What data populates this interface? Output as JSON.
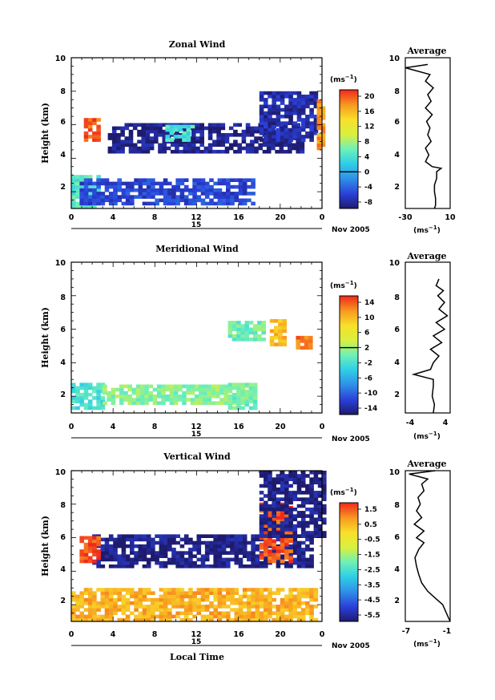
{
  "chart_data": [
    {
      "type": "heatmap",
      "title": "Zonal Wind",
      "ylabel": "Height (km)",
      "xlabel": "",
      "xlim": [
        0,
        24
      ],
      "ylim": [
        1,
        10
      ],
      "xticks": [
        "0",
        "4",
        "8",
        "12",
        "16",
        "20",
        "0"
      ],
      "yticks": [
        "2",
        "4",
        "6",
        "8",
        "10"
      ],
      "date_label": "15",
      "month_label": "Nov 2005",
      "colorbar": {
        "units": "(ms",
        "units_exp": "−1",
        "units_close": ")",
        "ticks": [
          "20",
          "16",
          "12",
          "8",
          "4",
          "0",
          "-4",
          "-8"
        ],
        "range": [
          -10,
          22
        ],
        "zero_line": 0
      },
      "regions": [
        {
          "x": [
            1.2,
            2.8
          ],
          "y": [
            5.0,
            6.3
          ],
          "value": 20
        },
        {
          "x": [
            0.0,
            2.8
          ],
          "y": [
            1.0,
            3.0
          ],
          "value": 5
        },
        {
          "x": [
            0.8,
            17.5
          ],
          "y": [
            1.2,
            2.8
          ],
          "value": -6
        },
        {
          "x": [
            3.5,
            22.0
          ],
          "y": [
            4.3,
            6.0
          ],
          "value": -9
        },
        {
          "x": [
            9.0,
            11.5
          ],
          "y": [
            5.0,
            6.0
          ],
          "value": 4
        },
        {
          "x": [
            18.0,
            23.5
          ],
          "y": [
            5.0,
            8.0
          ],
          "value": -8
        },
        {
          "x": [
            23.5,
            24.0
          ],
          "y": [
            4.5,
            7.5
          ],
          "value": 18
        }
      ],
      "average_profile": {
        "title": "Average",
        "xlabel": "(ms",
        "xlabel_exp": "−1",
        "xlabel_close": ")",
        "xticks": [
          "-30",
          "10"
        ],
        "xlim": [
          -30,
          10
        ],
        "yticks": [
          "2",
          "4",
          "6",
          "8",
          "10"
        ],
        "points": [
          [
            -10,
            9.6
          ],
          [
            -30,
            9.4
          ],
          [
            -8,
            9.0
          ],
          [
            -12,
            8.6
          ],
          [
            -5,
            8.2
          ],
          [
            -10,
            7.8
          ],
          [
            -7,
            7.4
          ],
          [
            -12,
            7.0
          ],
          [
            -6,
            6.6
          ],
          [
            -11,
            6.2
          ],
          [
            -8,
            5.8
          ],
          [
            -10,
            5.4
          ],
          [
            -7,
            5.0
          ],
          [
            -12,
            4.6
          ],
          [
            -9,
            4.2
          ],
          [
            -12,
            3.8
          ],
          [
            -6,
            3.5
          ],
          [
            2,
            3.4
          ],
          [
            -2,
            3.2
          ],
          [
            -2,
            2.8
          ],
          [
            -4,
            2.4
          ],
          [
            -4,
            2.0
          ],
          [
            -3,
            1.6
          ],
          [
            -3,
            1.2
          ],
          [
            -4,
            1.0
          ]
        ]
      }
    },
    {
      "type": "heatmap",
      "title": "Meridional Wind",
      "ylabel": "Height (km)",
      "xlabel": "",
      "xlim": [
        0,
        24
      ],
      "ylim": [
        1,
        10
      ],
      "xticks": [
        "0",
        "4",
        "8",
        "12",
        "16",
        "20",
        "0"
      ],
      "yticks": [
        "2",
        "4",
        "6",
        "8",
        "10"
      ],
      "date_label": "15",
      "month_label": "Nov 2005",
      "colorbar": {
        "units": "(ms",
        "units_exp": "−1",
        "units_close": ")",
        "ticks": [
          "14",
          "10",
          "6",
          "2",
          "-2",
          "-6",
          "-10",
          "-14"
        ],
        "range": [
          -16,
          16
        ],
        "zero_line": 2
      },
      "regions": [
        {
          "x": [
            0.0,
            3.0
          ],
          "y": [
            1.2,
            2.8
          ],
          "value": -2
        },
        {
          "x": [
            3.0,
            17.5
          ],
          "y": [
            1.5,
            2.7
          ],
          "value": 1
        },
        {
          "x": [
            15.0,
            17.5
          ],
          "y": [
            1.2,
            2.8
          ],
          "value": 0
        },
        {
          "x": [
            15.0,
            18.5
          ],
          "y": [
            5.3,
            6.5
          ],
          "value": 0
        },
        {
          "x": [
            19.0,
            20.5
          ],
          "y": [
            5.0,
            6.5
          ],
          "value": 10
        },
        {
          "x": [
            21.5,
            23.0
          ],
          "y": [
            4.8,
            5.6
          ],
          "value": 13
        }
      ],
      "average_profile": {
        "title": "Average",
        "xlabel": "(ms",
        "xlabel_exp": "−1",
        "xlabel_close": ")",
        "xticks": [
          "-4",
          "4"
        ],
        "xlim": [
          -4,
          4
        ],
        "yticks": [
          "2",
          "4",
          "6",
          "8",
          "10"
        ],
        "points": [
          [
            1.0,
            1.0
          ],
          [
            1.2,
            1.5
          ],
          [
            0.8,
            2.0
          ],
          [
            1.0,
            2.6
          ],
          [
            1.0,
            3.0
          ],
          [
            -2.5,
            3.3
          ],
          [
            0.5,
            3.6
          ],
          [
            1.0,
            4.0
          ],
          [
            2.0,
            4.4
          ],
          [
            0.5,
            4.8
          ],
          [
            2.5,
            5.2
          ],
          [
            1.0,
            5.6
          ],
          [
            3.0,
            6.0
          ],
          [
            1.5,
            6.4
          ],
          [
            3.5,
            6.8
          ],
          [
            2.0,
            7.2
          ],
          [
            3.0,
            7.6
          ],
          [
            1.8,
            8.0
          ],
          [
            2.8,
            8.3
          ],
          [
            1.5,
            8.6
          ],
          [
            2.0,
            9.0
          ]
        ]
      }
    },
    {
      "type": "heatmap",
      "title": "Vertical Wind",
      "ylabel": "Height (km)",
      "xlabel": "Local Time",
      "xlim": [
        0,
        24
      ],
      "ylim": [
        1,
        10
      ],
      "xticks": [
        "0",
        "4",
        "8",
        "12",
        "16",
        "20",
        "0"
      ],
      "yticks": [
        "2",
        "4",
        "6",
        "8",
        "10"
      ],
      "date_label": "15",
      "month_label": "Nov 2005",
      "colorbar": {
        "units": "(ms",
        "units_exp": "−1",
        "units_close": ")",
        "ticks": [
          "1.5",
          "0.5",
          "-0.5",
          "-1.5",
          "-2.5",
          "-3.5",
          "-4.5",
          "-5.5"
        ],
        "range": [
          -6.2,
          2.2
        ],
        "zero_line": null
      },
      "regions": [
        {
          "x": [
            0.0,
            23.5
          ],
          "y": [
            1.0,
            3.0
          ],
          "value": 0.8
        },
        {
          "x": [
            2.0,
            23.0
          ],
          "y": [
            4.2,
            6.2
          ],
          "value": -6.0
        },
        {
          "x": [
            0.8,
            2.8
          ],
          "y": [
            4.5,
            6.0
          ],
          "value": 1.8
        },
        {
          "x": [
            18.0,
            21.0
          ],
          "y": [
            4.5,
            8.0
          ],
          "value": 1.8
        },
        {
          "x": [
            18.0,
            24.0
          ],
          "y": [
            6.0,
            9.8
          ],
          "value": -6.0
        }
      ],
      "average_profile": {
        "title": "Average",
        "xlabel": "(ms",
        "xlabel_exp": "−1",
        "xlabel_close": ")",
        "xticks": [
          "-7",
          "-1"
        ],
        "xlim": [
          -7,
          -1
        ],
        "yticks": [
          "2",
          "4",
          "6",
          "8",
          "10"
        ],
        "points": [
          [
            -1.0,
            1.0
          ],
          [
            -1.5,
            1.5
          ],
          [
            -2.0,
            2.0
          ],
          [
            -3.0,
            2.4
          ],
          [
            -4.0,
            2.8
          ],
          [
            -4.8,
            3.3
          ],
          [
            -5.2,
            3.8
          ],
          [
            -5.5,
            4.3
          ],
          [
            -5.7,
            4.8
          ],
          [
            -5.2,
            5.3
          ],
          [
            -4.5,
            5.7
          ],
          [
            -5.5,
            6.0
          ],
          [
            -4.5,
            6.4
          ],
          [
            -5.8,
            6.8
          ],
          [
            -4.8,
            7.2
          ],
          [
            -5.5,
            7.6
          ],
          [
            -5.0,
            8.0
          ],
          [
            -5.3,
            8.4
          ],
          [
            -4.5,
            8.8
          ],
          [
            -4.8,
            9.2
          ],
          [
            -4.0,
            9.5
          ],
          [
            -6.5,
            9.8
          ],
          [
            -3.0,
            10.0
          ]
        ]
      }
    }
  ]
}
